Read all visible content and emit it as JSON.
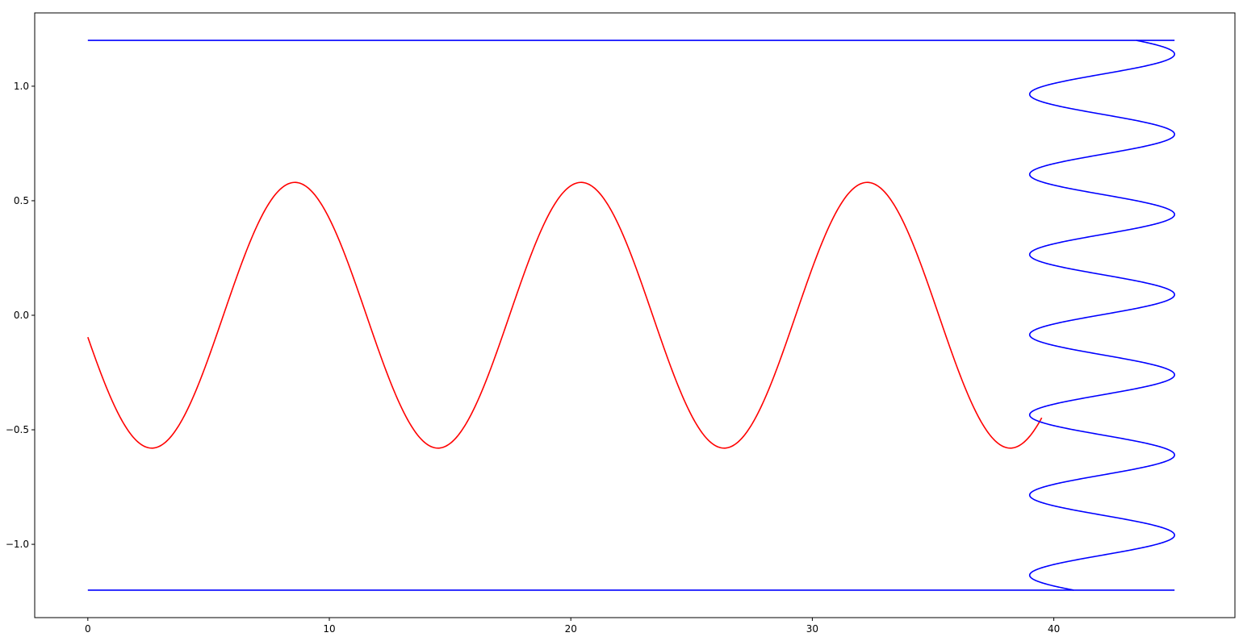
{
  "chart_data": {
    "type": "line",
    "title": "",
    "xlabel": "",
    "ylabel": "",
    "xlim": [
      -2.2,
      47.5
    ],
    "ylim": [
      -1.32,
      1.32
    ],
    "grid": false,
    "legend": "none",
    "x_ticks": [
      {
        "value": 0,
        "label": "0"
      },
      {
        "value": 10,
        "label": "10"
      },
      {
        "value": 20,
        "label": "20"
      },
      {
        "value": 30,
        "label": "30"
      },
      {
        "value": 40,
        "label": "40"
      }
    ],
    "y_ticks": [
      {
        "value": -1.0,
        "label": "−1.0"
      },
      {
        "value": -0.5,
        "label": "−0.5"
      },
      {
        "value": 0.0,
        "label": "0.0"
      },
      {
        "value": 0.5,
        "label": "0.5"
      },
      {
        "value": 1.0,
        "label": "1.0"
      }
    ],
    "series": [
      {
        "color": "#ff0000",
        "kind": "sinusoid_in_x",
        "x_range": [
          0,
          39.5
        ],
        "amplitude": 0.58,
        "period": 11.85,
        "first_minimum_x": 2.65,
        "start_y": -0.1
      },
      {
        "color": "#0000ff",
        "kind": "sinusoid_in_y",
        "y_range": [
          -1.2,
          1.2
        ],
        "x_center": 42.0,
        "x_amplitude": 3.0,
        "period_y": 0.35,
        "first_maximum_y": -0.96
      },
      {
        "color": "#0000ff",
        "kind": "horizontal_line",
        "y": 1.2,
        "x_range": [
          0,
          45
        ]
      },
      {
        "color": "#0000ff",
        "kind": "horizontal_line",
        "y": -1.2,
        "x_range": [
          0,
          45
        ]
      }
    ]
  }
}
